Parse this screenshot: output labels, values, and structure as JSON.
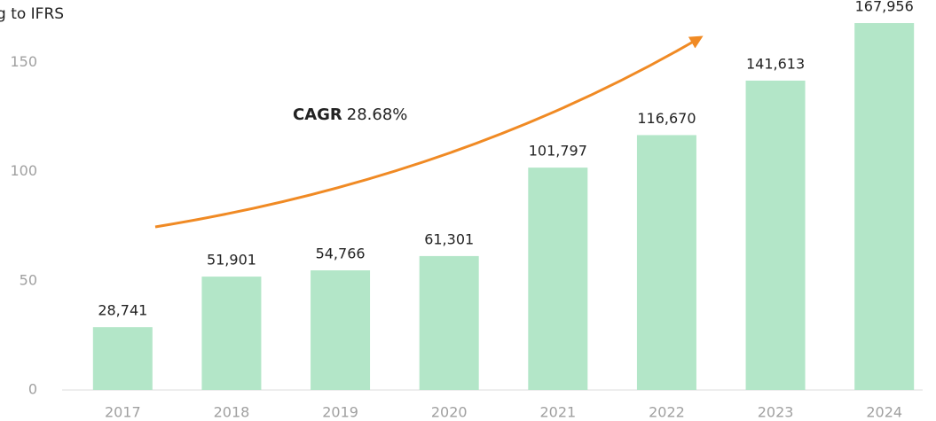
{
  "chart_data": {
    "type": "bar",
    "title": "g to IFRS",
    "annotation": {
      "label": "CAGR",
      "value": "28.68%"
    },
    "categories": [
      "2017",
      "2018",
      "2019",
      "2020",
      "2021",
      "2022",
      "2023",
      "2024"
    ],
    "values": [
      28.741,
      51.901,
      54.766,
      61.301,
      101.797,
      116.67,
      141.613,
      167.956
    ],
    "value_labels": [
      "28,741",
      "51,901",
      "54,766",
      "61,301",
      "101,797",
      "116,670",
      "141,613",
      "167,956"
    ],
    "color": "#b3e6c8",
    "ylim": [
      0,
      170
    ],
    "yticks": [
      0,
      50,
      100,
      150
    ],
    "grid": false
  }
}
